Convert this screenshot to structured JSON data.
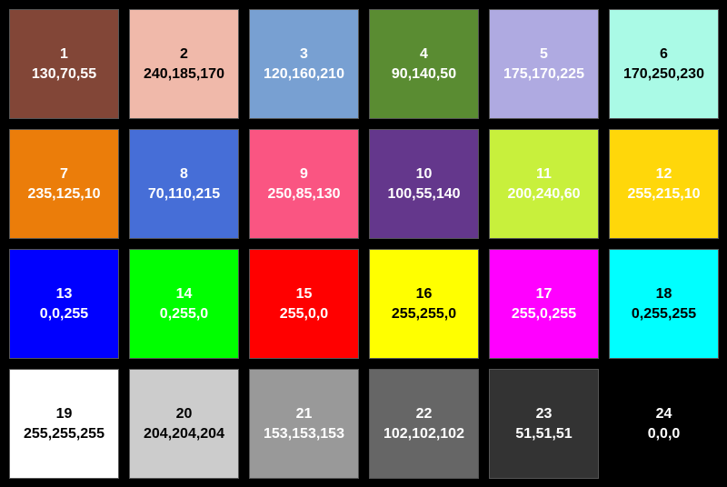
{
  "swatches": [
    {
      "number": "1",
      "rgb": "130,70,55",
      "color": "#824637",
      "text": "#ffffff"
    },
    {
      "number": "2",
      "rgb": "240,185,170",
      "color": "#f0b9aa",
      "text": "#000000"
    },
    {
      "number": "3",
      "rgb": "120,160,210",
      "color": "#78a0d2",
      "text": "#ffffff"
    },
    {
      "number": "4",
      "rgb": "90,140,50",
      "color": "#5a8c32",
      "text": "#ffffff"
    },
    {
      "number": "5",
      "rgb": "175,170,225",
      "color": "#afaae1",
      "text": "#ffffff"
    },
    {
      "number": "6",
      "rgb": "170,250,230",
      "color": "#aafae6",
      "text": "#000000"
    },
    {
      "number": "7",
      "rgb": "235,125,10",
      "color": "#eb7d0a",
      "text": "#ffffff"
    },
    {
      "number": "8",
      "rgb": "70,110,215",
      "color": "#466ed7",
      "text": "#ffffff"
    },
    {
      "number": "9",
      "rgb": "250,85,130",
      "color": "#fa5582",
      "text": "#ffffff"
    },
    {
      "number": "10",
      "rgb": "100,55,140",
      "color": "#64378c",
      "text": "#ffffff"
    },
    {
      "number": "11",
      "rgb": "200,240,60",
      "color": "#c8f03c",
      "text": "#ffffff"
    },
    {
      "number": "12",
      "rgb": "255,215,10",
      "color": "#ffd70a",
      "text": "#ffffff"
    },
    {
      "number": "13",
      "rgb": "0,0,255",
      "color": "#0000ff",
      "text": "#ffffff"
    },
    {
      "number": "14",
      "rgb": "0,255,0",
      "color": "#00ff00",
      "text": "#ffffff"
    },
    {
      "number": "15",
      "rgb": "255,0,0",
      "color": "#ff0000",
      "text": "#ffffff"
    },
    {
      "number": "16",
      "rgb": "255,255,0",
      "color": "#ffff00",
      "text": "#000000"
    },
    {
      "number": "17",
      "rgb": "255,0,255",
      "color": "#ff00ff",
      "text": "#ffffff"
    },
    {
      "number": "18",
      "rgb": "0,255,255",
      "color": "#00ffff",
      "text": "#000000"
    },
    {
      "number": "19",
      "rgb": "255,255,255",
      "color": "#ffffff",
      "text": "#000000"
    },
    {
      "number": "20",
      "rgb": "204,204,204",
      "color": "#cccccc",
      "text": "#000000"
    },
    {
      "number": "21",
      "rgb": "153,153,153",
      "color": "#999999",
      "text": "#ffffff"
    },
    {
      "number": "22",
      "rgb": "102,102,102",
      "color": "#666666",
      "text": "#ffffff"
    },
    {
      "number": "23",
      "rgb": "51,51,51",
      "color": "#333333",
      "text": "#ffffff"
    },
    {
      "number": "24",
      "rgb": "0,0,0",
      "color": "#000000",
      "text": "#ffffff"
    }
  ]
}
